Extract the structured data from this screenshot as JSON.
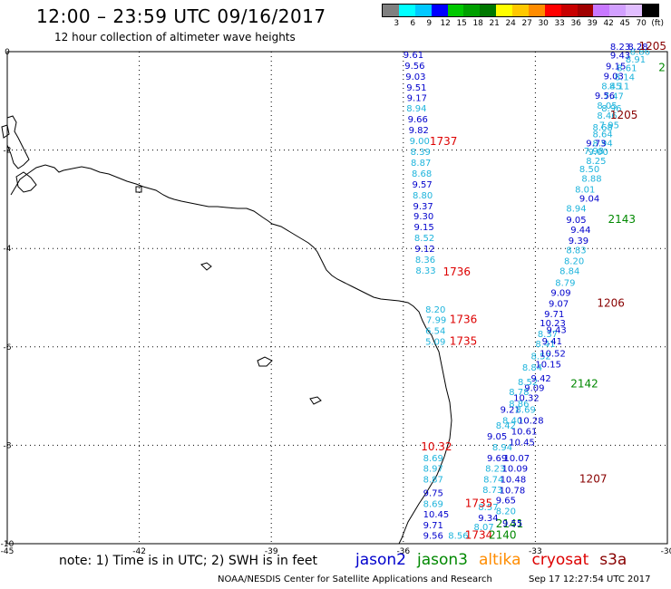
{
  "header": {
    "title": "12:00 – 23:59 UTC 09/16/2017",
    "subtitle": "12 hour collection of altimeter wave heights"
  },
  "legend": {
    "colors": [
      "#808080",
      "#00ffff",
      "#00c8ff",
      "#0000ff",
      "#00c800",
      "#00a000",
      "#007800",
      "#ffff00",
      "#ffc800",
      "#ff8c00",
      "#ff0000",
      "#c80000",
      "#a00000",
      "#c878ff",
      "#d2a0ff",
      "#e1beff",
      "#000000"
    ],
    "ticks": [
      "3",
      "6",
      "9",
      "12",
      "15",
      "18",
      "21",
      "24",
      "27",
      "30",
      "33",
      "36",
      "39",
      "42",
      "45",
      "70",
      "(ft)"
    ]
  },
  "map": {
    "lon_ticks": [
      "-45",
      "-42",
      "-39",
      "-36",
      "-33",
      "-30"
    ],
    "lat_ticks": [
      "0",
      "-2",
      "-4",
      "-6",
      "-8",
      "-10"
    ],
    "lon_range": [
      -45,
      -30
    ],
    "lat_range": [
      -10,
      0
    ],
    "tracks": {
      "col_jason2": "#0000cc",
      "col_light": "#1eb4dc",
      "col_red": "#dd0000",
      "col_darkred": "#880000",
      "col_green": "#008800",
      "blocks": [
        {
          "col": "jason2",
          "lon": -36.0,
          "lat": -0.13,
          "text": "9.61"
        },
        {
          "col": "jason2",
          "lon": -35.97,
          "lat": -0.35,
          "text": "9.56"
        },
        {
          "col": "jason2",
          "lon": -35.95,
          "lat": -0.57,
          "text": "9.03"
        },
        {
          "col": "jason2",
          "lon": -35.93,
          "lat": -0.79,
          "text": "9.51"
        },
        {
          "col": "jason2",
          "lon": -35.92,
          "lat": -1.0,
          "text": "9.17"
        },
        {
          "col": "light",
          "lon": -35.93,
          "lat": -1.22,
          "text": "8.94"
        },
        {
          "col": "jason2",
          "lon": -35.9,
          "lat": -1.44,
          "text": "9.66"
        },
        {
          "col": "jason2",
          "lon": -35.88,
          "lat": -1.66,
          "text": "9.82"
        },
        {
          "col": "light",
          "lon": -35.86,
          "lat": -1.88,
          "text": "9.00"
        },
        {
          "col": "light",
          "lon": -35.84,
          "lat": -2.1,
          "text": "8.39"
        },
        {
          "col": "light",
          "lon": -35.83,
          "lat": -2.32,
          "text": "8.87"
        },
        {
          "col": "light",
          "lon": -35.81,
          "lat": -2.54,
          "text": "8.68"
        },
        {
          "col": "jason2",
          "lon": -35.8,
          "lat": -2.76,
          "text": "9.57"
        },
        {
          "col": "light",
          "lon": -35.79,
          "lat": -2.98,
          "text": "8.80"
        },
        {
          "col": "jason2",
          "lon": -35.78,
          "lat": -3.2,
          "text": "9.37"
        },
        {
          "col": "jason2",
          "lon": -35.77,
          "lat": -3.41,
          "text": "9.30"
        },
        {
          "col": "jason2",
          "lon": -35.76,
          "lat": -3.63,
          "text": "9.15"
        },
        {
          "col": "light",
          "lon": -35.75,
          "lat": -3.85,
          "text": "8.52"
        },
        {
          "col": "jason2",
          "lon": -35.74,
          "lat": -4.07,
          "text": "9.12"
        },
        {
          "col": "light",
          "lon": -35.73,
          "lat": -4.29,
          "text": "8.36"
        },
        {
          "col": "light",
          "lon": -35.72,
          "lat": -4.51,
          "text": "8.33"
        },
        {
          "col": "red",
          "lon": -35.4,
          "lat": -1.9,
          "text": "1737"
        },
        {
          "col": "red",
          "lon": -35.1,
          "lat": -4.55,
          "text": "1736"
        },
        {
          "col": "light",
          "lon": -35.5,
          "lat": -5.3,
          "text": "8.20"
        },
        {
          "col": "light",
          "lon": -35.48,
          "lat": -5.52,
          "text": "7.99"
        },
        {
          "col": "light",
          "lon": -35.5,
          "lat": -5.74,
          "text": "6.54"
        },
        {
          "col": "light",
          "lon": -35.5,
          "lat": -5.96,
          "text": "5.09"
        },
        {
          "col": "red",
          "lon": -34.95,
          "lat": -5.52,
          "text": "1736"
        },
        {
          "col": "red",
          "lon": -34.95,
          "lat": -5.96,
          "text": "1735"
        },
        {
          "col": "red",
          "lon": -35.6,
          "lat": -8.1,
          "text": "10.32"
        },
        {
          "col": "light",
          "lon": -35.55,
          "lat": -8.32,
          "text": "8.69"
        },
        {
          "col": "light",
          "lon": -35.55,
          "lat": -8.54,
          "text": "8.97"
        },
        {
          "col": "light",
          "lon": -35.55,
          "lat": -8.76,
          "text": "8.87"
        },
        {
          "col": "jason2",
          "lon": -35.55,
          "lat": -9.03,
          "text": "9.75"
        },
        {
          "col": "light",
          "lon": -35.55,
          "lat": -9.25,
          "text": "8.69"
        },
        {
          "col": "jason2",
          "lon": -35.55,
          "lat": -9.47,
          "text": "10.45"
        },
        {
          "col": "jason2",
          "lon": -35.55,
          "lat": -9.69,
          "text": "9.71"
        },
        {
          "col": "jason2",
          "lon": -35.55,
          "lat": -9.9,
          "text": "9.56"
        },
        {
          "col": "light",
          "lon": -34.98,
          "lat": -9.9,
          "text": "8.56"
        },
        {
          "col": "light",
          "lon": -34.4,
          "lat": -9.72,
          "text": "8.07"
        },
        {
          "col": "light",
          "lon": -34.3,
          "lat": -9.32,
          "text": "8.57"
        },
        {
          "col": "jason2",
          "lon": -34.3,
          "lat": -9.54,
          "text": "9.34"
        },
        {
          "col": "red",
          "lon": -34.6,
          "lat": -9.25,
          "text": "1735"
        },
        {
          "col": "red",
          "lon": -34.6,
          "lat": -9.9,
          "text": "1734"
        },
        {
          "col": "green",
          "lon": -34.06,
          "lat": -9.9,
          "text": "2140"
        },
        {
          "col": "green",
          "lon": -33.9,
          "lat": -9.67,
          "text": "2141"
        },
        {
          "col": "jason2",
          "lon": -33.75,
          "lat": -9.65,
          "text": "9.55"
        },
        {
          "col": "light",
          "lon": -33.9,
          "lat": -9.4,
          "text": "8.20"
        },
        {
          "col": "jason2",
          "lon": -33.9,
          "lat": -9.18,
          "text": "9.65"
        },
        {
          "col": "light",
          "lon": -34.2,
          "lat": -8.97,
          "text": "8.73"
        },
        {
          "col": "jason2",
          "lon": -33.82,
          "lat": -8.98,
          "text": "10.78"
        },
        {
          "col": "light",
          "lon": -34.18,
          "lat": -8.76,
          "text": "8.74"
        },
        {
          "col": "jason2",
          "lon": -33.8,
          "lat": -8.76,
          "text": "10.48"
        },
        {
          "col": "light",
          "lon": -34.14,
          "lat": -8.54,
          "text": "8.23"
        },
        {
          "col": "jason2",
          "lon": -33.76,
          "lat": -8.54,
          "text": "10.09"
        },
        {
          "col": "jason2",
          "lon": -34.1,
          "lat": -8.32,
          "text": "9.69"
        },
        {
          "col": "jason2",
          "lon": -33.72,
          "lat": -8.32,
          "text": "10.07"
        },
        {
          "col": "light",
          "lon": -33.98,
          "lat": -8.1,
          "text": "8.94"
        },
        {
          "col": "jason2",
          "lon": -33.6,
          "lat": -8.0,
          "text": "10.45"
        },
        {
          "col": "jason2",
          "lon": -34.1,
          "lat": -7.88,
          "text": "9.05"
        },
        {
          "col": "jason2",
          "lon": -33.55,
          "lat": -7.78,
          "text": "10.61"
        },
        {
          "col": "light",
          "lon": -33.9,
          "lat": -7.66,
          "text": "8.42"
        },
        {
          "col": "light",
          "lon": -33.75,
          "lat": -7.56,
          "text": "8.40"
        },
        {
          "col": "jason2",
          "lon": -33.4,
          "lat": -7.56,
          "text": "10.28"
        },
        {
          "col": "jason2",
          "lon": -33.8,
          "lat": -7.34,
          "text": "9.21"
        },
        {
          "col": "light",
          "lon": -33.45,
          "lat": -7.34,
          "text": "8.69"
        },
        {
          "col": "light",
          "lon": -33.6,
          "lat": -7.22,
          "text": "8.86"
        },
        {
          "col": "jason2",
          "lon": -33.5,
          "lat": -7.1,
          "text": "10.32"
        },
        {
          "col": "light",
          "lon": -33.6,
          "lat": -6.98,
          "text": "8.78"
        },
        {
          "col": "jason2",
          "lon": -33.25,
          "lat": -6.9,
          "text": "9.09"
        },
        {
          "col": "light",
          "lon": -33.4,
          "lat": -6.78,
          "text": "8.52"
        },
        {
          "col": "jason2",
          "lon": -33.1,
          "lat": -6.7,
          "text": "9.42"
        },
        {
          "col": "green",
          "lon": -32.2,
          "lat": -6.82,
          "text": "2142"
        },
        {
          "col": "light",
          "lon": -33.3,
          "lat": -6.48,
          "text": "8.84"
        },
        {
          "col": "jason2",
          "lon": -33.0,
          "lat": -6.42,
          "text": "10.15"
        },
        {
          "col": "light",
          "lon": -33.1,
          "lat": -6.25,
          "text": "8.52"
        },
        {
          "col": "jason2",
          "lon": -32.9,
          "lat": -6.2,
          "text": "10.52"
        },
        {
          "col": "light",
          "lon": -33.0,
          "lat": -6.0,
          "text": "8.41"
        },
        {
          "col": "jason2",
          "lon": -32.85,
          "lat": -5.95,
          "text": "9.41"
        },
        {
          "col": "light",
          "lon": -32.95,
          "lat": -5.8,
          "text": "8.37"
        },
        {
          "col": "jason2",
          "lon": -32.75,
          "lat": -5.72,
          "text": "9.43"
        },
        {
          "col": "jason2",
          "lon": -32.9,
          "lat": -5.58,
          "text": "10.23"
        },
        {
          "col": "jason2",
          "lon": -32.8,
          "lat": -5.4,
          "text": "9.71"
        },
        {
          "col": "jason2",
          "lon": -32.7,
          "lat": -5.18,
          "text": "9.07"
        },
        {
          "col": "darkred",
          "lon": -31.6,
          "lat": -5.18,
          "text": "1206"
        },
        {
          "col": "jason2",
          "lon": -32.65,
          "lat": -4.96,
          "text": "9.09"
        },
        {
          "col": "light",
          "lon": -32.55,
          "lat": -4.76,
          "text": "8.79"
        },
        {
          "col": "light",
          "lon": -32.45,
          "lat": -4.52,
          "text": "8.84"
        },
        {
          "col": "light",
          "lon": -32.35,
          "lat": -4.32,
          "text": "8.20"
        },
        {
          "col": "light",
          "lon": -32.3,
          "lat": -4.1,
          "text": "8.83"
        },
        {
          "col": "jason2",
          "lon": -32.25,
          "lat": -3.9,
          "text": "9.39"
        },
        {
          "col": "jason2",
          "lon": -32.2,
          "lat": -3.68,
          "text": "9.44"
        },
        {
          "col": "jason2",
          "lon": -32.3,
          "lat": -3.48,
          "text": "9.05"
        },
        {
          "col": "green",
          "lon": -31.35,
          "lat": -3.48,
          "text": "2143"
        },
        {
          "col": "light",
          "lon": -32.3,
          "lat": -3.25,
          "text": "8.94"
        },
        {
          "col": "jason2",
          "lon": -32.0,
          "lat": -3.05,
          "text": "9.04"
        },
        {
          "col": "light",
          "lon": -32.1,
          "lat": -2.86,
          "text": "8.01"
        },
        {
          "col": "light",
          "lon": -31.95,
          "lat": -2.64,
          "text": "8.88"
        },
        {
          "col": "light",
          "lon": -32.0,
          "lat": -2.45,
          "text": "8.50"
        },
        {
          "col": "light",
          "lon": -31.85,
          "lat": -2.28,
          "text": "8.25"
        },
        {
          "col": "light",
          "lon": -31.9,
          "lat": -2.08,
          "text": "7.98"
        },
        {
          "col": "light",
          "lon": -31.8,
          "lat": -2.1,
          "text": "9.00"
        },
        {
          "col": "light",
          "lon": -31.7,
          "lat": -1.92,
          "text": "8.94"
        },
        {
          "col": "jason2",
          "lon": -31.85,
          "lat": -1.92,
          "text": "9.73"
        },
        {
          "col": "light",
          "lon": -31.7,
          "lat": -1.74,
          "text": "8.64"
        },
        {
          "col": "light",
          "lon": -31.7,
          "lat": -1.6,
          "text": "8.68"
        },
        {
          "col": "light",
          "lon": -31.55,
          "lat": -1.56,
          "text": "7.95"
        },
        {
          "col": "light",
          "lon": -31.6,
          "lat": -1.36,
          "text": "8.46"
        },
        {
          "col": "light",
          "lon": -31.5,
          "lat": -1.22,
          "text": "8.96"
        },
        {
          "col": "darkred",
          "lon": -31.3,
          "lat": -1.36,
          "text": "1205"
        },
        {
          "col": "light",
          "lon": -31.6,
          "lat": -1.16,
          "text": "8.05"
        },
        {
          "col": "light",
          "lon": -31.45,
          "lat": -0.97,
          "text": "7.47"
        },
        {
          "col": "jason2",
          "lon": -31.65,
          "lat": -0.96,
          "text": "9.56"
        },
        {
          "col": "light",
          "lon": -31.5,
          "lat": -0.76,
          "text": "8.45"
        },
        {
          "col": "light",
          "lon": -31.32,
          "lat": -0.76,
          "text": "8.11"
        },
        {
          "col": "light",
          "lon": -31.2,
          "lat": -0.58,
          "text": "8.14"
        },
        {
          "col": "jason2",
          "lon": -31.45,
          "lat": -0.56,
          "text": "9.03"
        },
        {
          "col": "light",
          "lon": -31.15,
          "lat": -0.4,
          "text": "8.61"
        },
        {
          "col": "jason2",
          "lon": -31.4,
          "lat": -0.36,
          "text": "9.15"
        },
        {
          "col": "light",
          "lon": -30.95,
          "lat": -0.22,
          "text": "8.91"
        },
        {
          "col": "jason2",
          "lon": -31.3,
          "lat": -0.14,
          "text": "9.43"
        },
        {
          "col": "light",
          "lon": -30.85,
          "lat": -0.06,
          "text": "8.86"
        },
        {
          "col": "jason2",
          "lon": -31.3,
          "lat": 0.04,
          "text": "8.23"
        },
        {
          "col": "jason2",
          "lon": -30.9,
          "lat": 0.04,
          "text": "8.28"
        },
        {
          "col": "darkred",
          "lon": -30.65,
          "lat": 0.04,
          "text": "1205"
        },
        {
          "col": "green",
          "lon": -30.2,
          "lat": -0.4,
          "text": "2"
        },
        {
          "col": "darkred",
          "lon": -32.0,
          "lat": -8.76,
          "text": "1207"
        }
      ]
    }
  },
  "footer": {
    "note": "note: 1) Time is in UTC; 2) SWH is in feet",
    "satellites": [
      {
        "label": "jason2",
        "color": "#0000cc"
      },
      {
        "label": "jason3",
        "color": "#008800"
      },
      {
        "label": "altika",
        "color": "#ff8c00"
      },
      {
        "label": "cryosat",
        "color": "#dd0000"
      },
      {
        "label": "s3a",
        "color": "#880000"
      }
    ],
    "credit": "NOAA/NESDIS Center for Satellite Applications and Research",
    "stamp": "Sep 17 12:27:54 UTC 2017"
  }
}
